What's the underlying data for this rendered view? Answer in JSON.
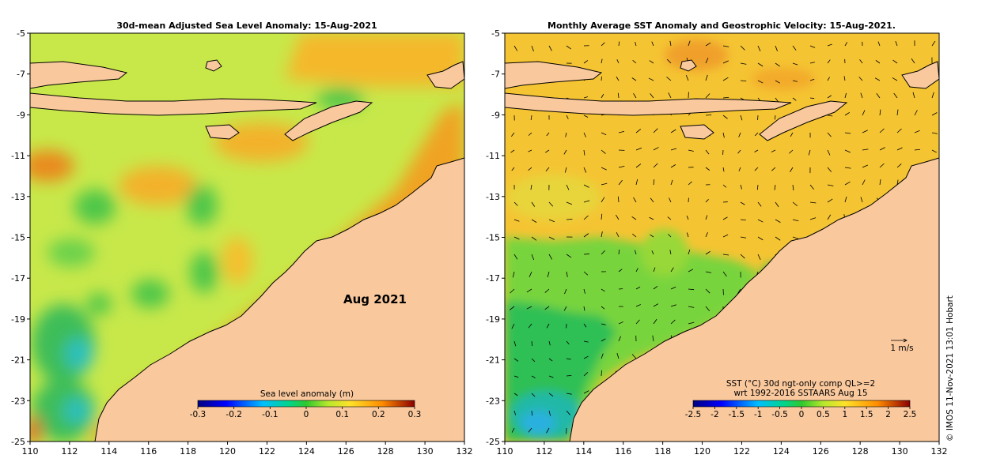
{
  "left_panel": {
    "title": "30d-mean Adjusted Sea Level Anomaly: 15-Aug-2021",
    "date_label": "Aug 2021",
    "colorbar": {
      "title": "Sea level anomaly (m)",
      "ticks": [
        "-0.3",
        "-0.2",
        "-0.1",
        "0",
        "0.1",
        "0.2",
        "0.3"
      ]
    }
  },
  "right_panel": {
    "title": "Monthly Average SST Anomaly  and Geostrophic Velocity: 15-Aug-2021.",
    "colorbar": {
      "title_line1": "SST (°C) 30d ngt-only comp QL>=2",
      "title_line2": "wrt 1992-2016 SSTAARS Aug 15",
      "ticks": [
        "-2.5",
        "-2",
        "-1.5",
        "-1",
        "-0.5",
        "0",
        "0.5",
        "1",
        "1.5",
        "2",
        "2.5"
      ]
    },
    "velocity_scale_label": "1 m/s"
  },
  "axes": {
    "y_ticks": [
      "-5",
      "-7",
      "-9",
      "-11",
      "-13",
      "-15",
      "-17",
      "-19",
      "-21",
      "-23",
      "-25"
    ],
    "x_ticks": [
      "110",
      "112",
      "114",
      "116",
      "118",
      "120",
      "122",
      "124",
      "126",
      "128",
      "130",
      "132"
    ]
  },
  "credit": "© IMOS 11-Nov-2021 13:01 Hobart",
  "colors": {
    "land": "#f9c89d",
    "ocean_left": "#c8e84a",
    "ocean_right": "#f5c433",
    "coast": "#000000"
  }
}
